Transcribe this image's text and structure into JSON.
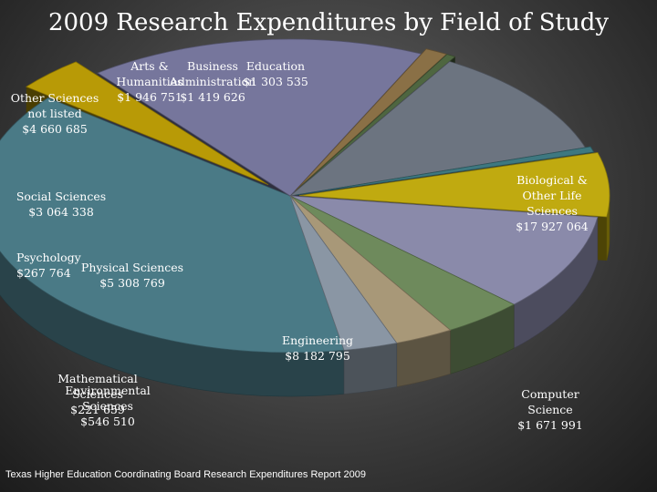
{
  "chart_data": {
    "type": "pie",
    "title": "2009 Research Expenditures by Field of Study",
    "style": "3d-exploded",
    "slices": [
      {
        "label": "Biological & Other Life Sciences",
        "value": 17927064,
        "value_text": "$17 927 064",
        "color": "#4a7a86"
      },
      {
        "label": "Computer Science",
        "value": 1671991,
        "value_text": "$1 671 991",
        "color": "#b89a06"
      },
      {
        "label": "Engineering",
        "value": 8182795,
        "value_text": "$8 182 795",
        "color": "#76769c"
      },
      {
        "label": "Environmental Sciences",
        "value": 546510,
        "value_text": "$546 510",
        "color": "#8a7046"
      },
      {
        "label": "Mathematical Sciences",
        "value": 221659,
        "value_text": "$221 659",
        "color": "#4e6640"
      },
      {
        "label": "Physical Sciences",
        "value": 5308769,
        "value_text": "$5 308 769",
        "color": "#6c7480"
      },
      {
        "label": "Psychology",
        "value": 267764,
        "value_text": "$267 764",
        "color": "#3e7880"
      },
      {
        "label": "Social Sciences",
        "value": 3064338,
        "value_text": "$3 064 338",
        "color": "#c0aa10"
      },
      {
        "label": "Other Sciences not listed",
        "value": 4660685,
        "value_text": "$4 660 685",
        "color": "#8a8aaa"
      },
      {
        "label": "Arts & Humanities",
        "value": 1946751,
        "value_text": "$1 946 751",
        "color": "#6e8a5c"
      },
      {
        "label": "Business Administration",
        "value": 1419626,
        "value_text": "$1 419 626",
        "color": "#a89878"
      },
      {
        "label": "Education",
        "value": 1303535,
        "value_text": "$1 303 535",
        "color": "#8a96a4"
      }
    ]
  },
  "labels": [
    {
      "lines": [
        "Biological &",
        "Other Life",
        "Sciences",
        "$17 927 064"
      ]
    },
    {
      "lines": [
        "Computer",
        "Science",
        "$1 671 991"
      ]
    },
    {
      "lines": [
        "Engineering",
        "$8 182 795"
      ]
    },
    {
      "lines": [
        "Environmental",
        "Sciences",
        "$546 510"
      ]
    },
    {
      "lines": [
        "Mathematical",
        "Sciences",
        "$221 659"
      ]
    },
    {
      "lines": [
        "Physical Sciences",
        "$5 308 769"
      ]
    },
    {
      "lines": [
        "Psychology",
        "$267 764"
      ]
    },
    {
      "lines": [
        "Social Sciences",
        "$3 064 338"
      ]
    },
    {
      "lines": [
        "Other Sciences",
        "not listed",
        "$4 660 685"
      ]
    },
    {
      "lines": [
        "Arts &",
        "Humanities",
        "$1 946 751"
      ]
    },
    {
      "lines": [
        "Business",
        "Administration",
        "$1 419 626"
      ]
    },
    {
      "lines": [
        "Education",
        "$1 303 535"
      ]
    }
  ],
  "source": "Texas Higher Education Coordinating Board Research Expenditures Report 2009"
}
